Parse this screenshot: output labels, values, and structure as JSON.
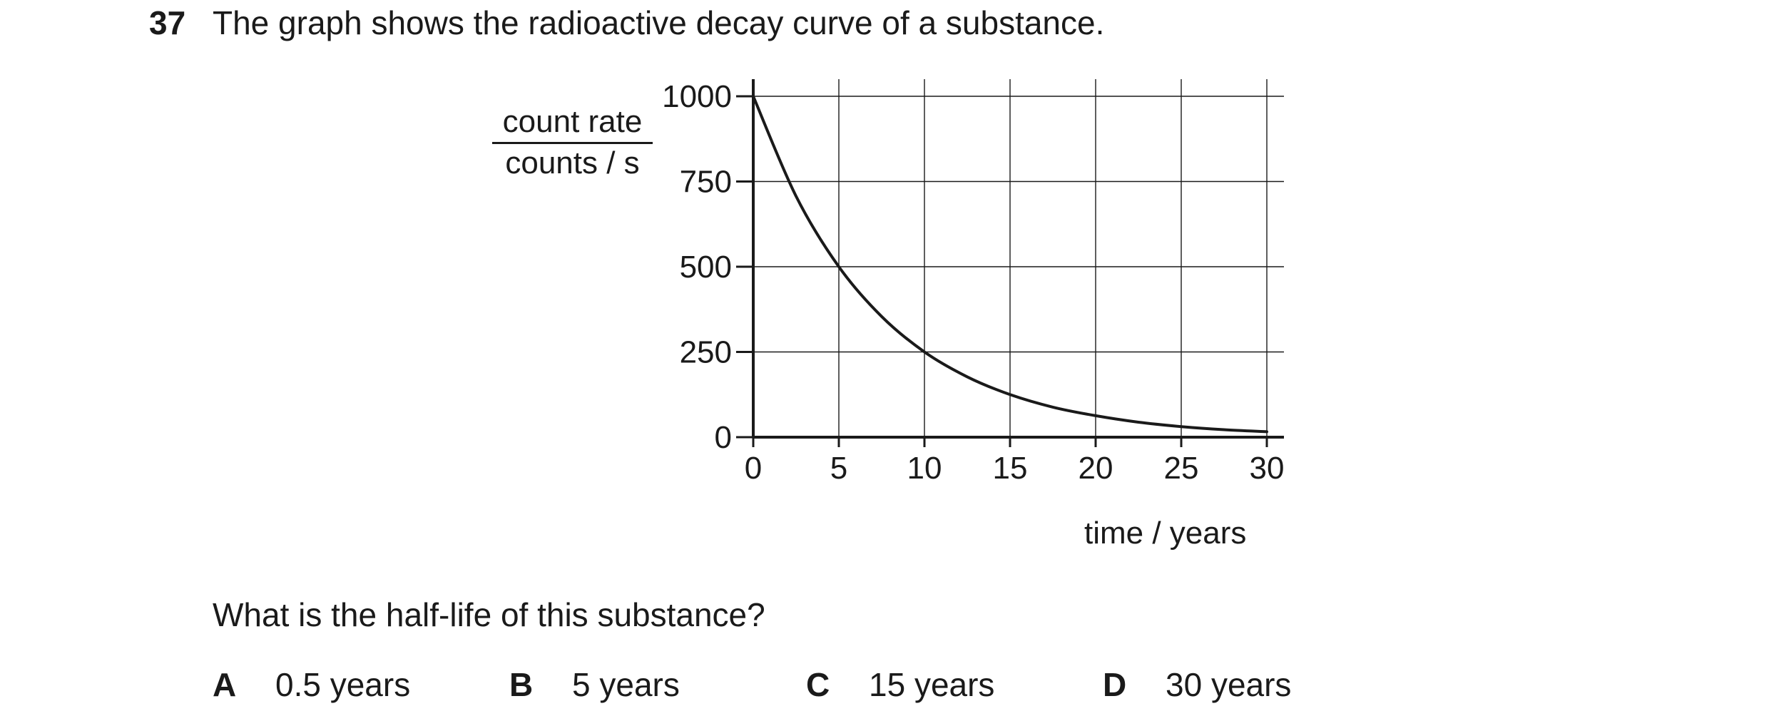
{
  "question": {
    "number": "37",
    "text": "The graph shows the radioactive decay curve of a substance.",
    "prompt": "What is the half-life of this substance?"
  },
  "options": [
    {
      "letter": "A",
      "text": "0.5 years"
    },
    {
      "letter": "B",
      "text": "5 years"
    },
    {
      "letter": "C",
      "text": "15 years"
    },
    {
      "letter": "D",
      "text": "30 years"
    }
  ],
  "chart_data": {
    "type": "line",
    "ylabel_numerator": "count rate",
    "ylabel_denominator": "counts / s",
    "xlabel": "time / years",
    "xlim": [
      0,
      30
    ],
    "ylim": [
      0,
      1000
    ],
    "x_ticks": [
      "0",
      "5",
      "10",
      "15",
      "20",
      "25",
      "30"
    ],
    "y_ticks": [
      "0",
      "250",
      "500",
      "750",
      "1000"
    ],
    "grid": true,
    "series": [
      {
        "x": [
          0,
          2.5,
          5,
          7.5,
          10,
          12.5,
          15,
          17.5,
          20,
          22.5,
          25,
          27.5,
          30
        ],
        "values": [
          1000,
          707,
          500,
          354,
          250,
          177,
          125,
          88,
          63,
          44,
          31,
          22,
          16
        ]
      }
    ]
  }
}
